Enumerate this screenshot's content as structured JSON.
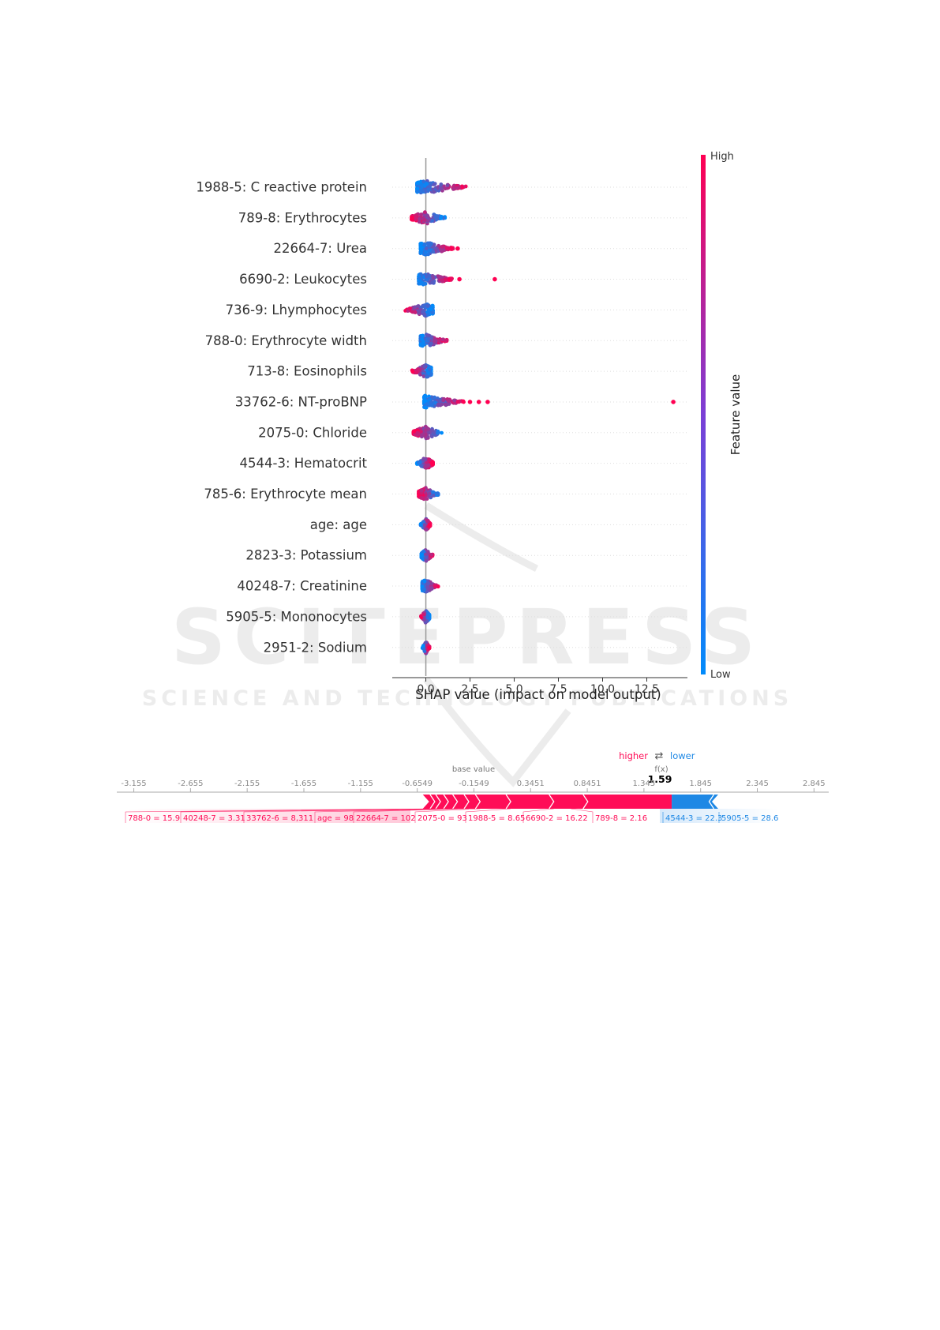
{
  "watermark": {
    "main": "SCITEPRESS",
    "sub": "SCIENCE AND TECHNOLOGY PUBLICATIONS"
  },
  "chart_data": [
    {
      "type": "scatter",
      "variant": "shap-beeswarm",
      "title": "",
      "xlabel": "SHAP value (impact on model output)",
      "ylabel": "",
      "xlim": [
        -1.9,
        14.8
      ],
      "xticks": [
        0.0,
        2.5,
        5.0,
        7.5,
        10.0,
        12.5
      ],
      "xtick_labels": [
        "0.0",
        "2.5",
        "5.0",
        "7.5",
        "10.0",
        "12.5"
      ],
      "features": [
        "1988-5: C reactive protein",
        "789-8: Erythrocytes",
        "22664-7: Urea",
        "6690-2: Leukocytes",
        "736-9: Lhymphocytes",
        "788-0: Erythrocyte width",
        "713-8: Eosinophils",
        "33762-6: NT-proBNP",
        "2075-0: Chloride",
        "4544-3: Hematocrit",
        "785-6: Erythrocyte mean",
        "age: age",
        "2823-3: Potassium",
        "40248-7: Creatinine",
        "5905-5: Mononocytes",
        "2951-2: Sodium"
      ],
      "spread": [
        {
          "min": -0.5,
          "max": 2.3,
          "outliers": [],
          "high_side": "right"
        },
        {
          "min": -0.8,
          "max": 1.1,
          "outliers": [],
          "high_side": "left"
        },
        {
          "min": -0.3,
          "max": 1.6,
          "outliers": [
            1.8
          ],
          "high_side": "right"
        },
        {
          "min": -0.4,
          "max": 1.5,
          "outliers": [
            1.9,
            3.9
          ],
          "high_side": "right"
        },
        {
          "min": -1.2,
          "max": 0.4,
          "outliers": [],
          "high_side": "left"
        },
        {
          "min": -0.3,
          "max": 1.2,
          "outliers": [],
          "high_side": "right"
        },
        {
          "min": -0.8,
          "max": 0.3,
          "outliers": [],
          "high_side": "left"
        },
        {
          "min": -0.1,
          "max": 2.2,
          "outliers": [
            2.5,
            3.0,
            3.5,
            14.0
          ],
          "high_side": "right"
        },
        {
          "min": -0.7,
          "max": 0.9,
          "outliers": [],
          "high_side": "left"
        },
        {
          "min": -0.5,
          "max": 0.4,
          "outliers": [],
          "high_side": "right"
        },
        {
          "min": -0.4,
          "max": 0.7,
          "outliers": [],
          "high_side": "left"
        },
        {
          "min": -0.3,
          "max": 0.25,
          "outliers": [],
          "high_side": "right"
        },
        {
          "min": -0.25,
          "max": 0.4,
          "outliers": [],
          "high_side": "right"
        },
        {
          "min": -0.2,
          "max": 0.7,
          "outliers": [],
          "high_side": "right"
        },
        {
          "min": -0.3,
          "max": 0.2,
          "outliers": [],
          "high_side": "left"
        },
        {
          "min": -0.2,
          "max": 0.2,
          "outliers": [],
          "high_side": "right"
        }
      ],
      "colorbar": {
        "label": "Feature value",
        "high": "High",
        "low": "Low",
        "high_color": "#ff0052",
        "low_color": "#008bfb"
      }
    },
    {
      "type": "bar",
      "variant": "shap-force-plot",
      "axis_ticks": [
        -3.155,
        -2.655,
        -2.155,
        -1.655,
        -1.155,
        -0.6549,
        -0.1549,
        0.3451,
        0.8451,
        1.345,
        1.845,
        2.345,
        2.845
      ],
      "axis_tick_labels": [
        "-3.155",
        "-2.655",
        "-2.155",
        "-1.655",
        "-1.155",
        "-0.6549",
        "-0.1549",
        "0.3451",
        "0.8451",
        "1.345",
        "1.845",
        "2.345",
        "2.845"
      ],
      "base_value": -0.1549,
      "base_value_label": "base value",
      "fx_label": "f(x)",
      "fx_value": 1.59,
      "fx_value_label": "1.59",
      "higher_label": "higher",
      "lower_label": "lower",
      "arrows_glyph": "⇄",
      "positive_color": "#ff0d57",
      "negative_color": "#1e88e5",
      "push_up_starts": [
        -0.55,
        -0.5,
        -0.45,
        -0.38,
        -0.3,
        -0.2,
        -0.1,
        0.17,
        0.55,
        0.85,
        1.59
      ],
      "push_down_ends": [
        1.59,
        1.92,
        2.0
      ],
      "positive_labels": [
        "788-0 = 15.9",
        "40248-7 = 3.31",
        "33762-6 = 8,311",
        "age = 98",
        "22664-7 = 102",
        "2075-0 = 93",
        "1988-5 = 8.65",
        "6690-2 = 16.22",
        "789-8 = 2.16"
      ],
      "negative_labels": [
        "4544-3 = 22.3",
        "5905-5 = 28.6"
      ]
    }
  ]
}
